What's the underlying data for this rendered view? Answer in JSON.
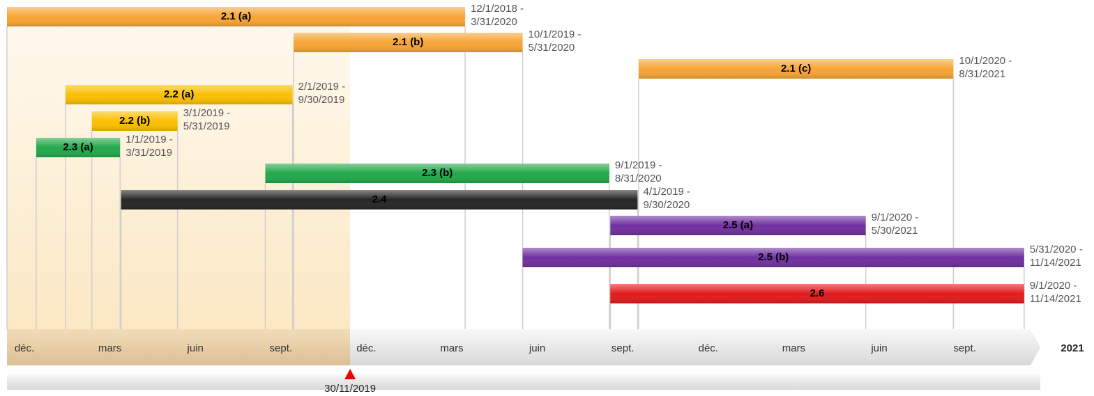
{
  "tasks": [
    {
      "label": "2.1 (a)",
      "start_text": "12/1/2018 -",
      "end_text": "3/31/2020",
      "color": "#f7a535",
      "text_color": "#000"
    },
    {
      "label": "2.1 (b)",
      "start_text": "10/1/2019 -",
      "end_text": "5/31/2020",
      "color": "#f7a535",
      "text_color": "#000"
    },
    {
      "label": "2.1 (c)",
      "start_text": "10/1/2020 -",
      "end_text": "8/31/2021",
      "color": "#f7a535",
      "text_color": "#000"
    },
    {
      "label": "2.2 (a)",
      "start_text": "2/1/2019 -",
      "end_text": "9/30/2019",
      "color": "#fbbf00",
      "text_color": "#000"
    },
    {
      "label": "2.2 (b)",
      "start_text": "3/1/2019 -",
      "end_text": "5/31/2019",
      "color": "#fbbf00",
      "text_color": "#000"
    },
    {
      "label": "2.3 (a)",
      "start_text": "1/1/2019 -",
      "end_text": "3/31/2019",
      "color": "#22a84a",
      "text_color": "#000"
    },
    {
      "label": "2.3 (b)",
      "start_text": "9/1/2019 -",
      "end_text": "8/31/2020",
      "color": "#22a84a",
      "text_color": "#000"
    },
    {
      "label": "2.4",
      "start_text": "4/1/2019 -",
      "end_text": "9/30/2020",
      "color": "#252525",
      "text_color": "#000"
    },
    {
      "label": "2.5 (a)",
      "start_text": "9/1/2020 -",
      "end_text": "5/30/2021",
      "color": "#7030a0",
      "text_color": "#000"
    },
    {
      "label": "2.5 (b)",
      "start_text": "5/31/2020 -",
      "end_text": "11/14/2021",
      "color": "#7030a0",
      "text_color": "#000"
    },
    {
      "label": "2.6",
      "start_text": "9/1/2020 -",
      "end_text": "11/14/2021",
      "color": "#e31a1c",
      "text_color": "#000"
    }
  ],
  "axis": {
    "labels": [
      "déc.",
      "mars",
      "juin",
      "sept.",
      "déc.",
      "mars",
      "juin",
      "sept.",
      "déc.",
      "mars",
      "juin",
      "sept."
    ],
    "end_label": "2021"
  },
  "today": "30/11/2019"
}
